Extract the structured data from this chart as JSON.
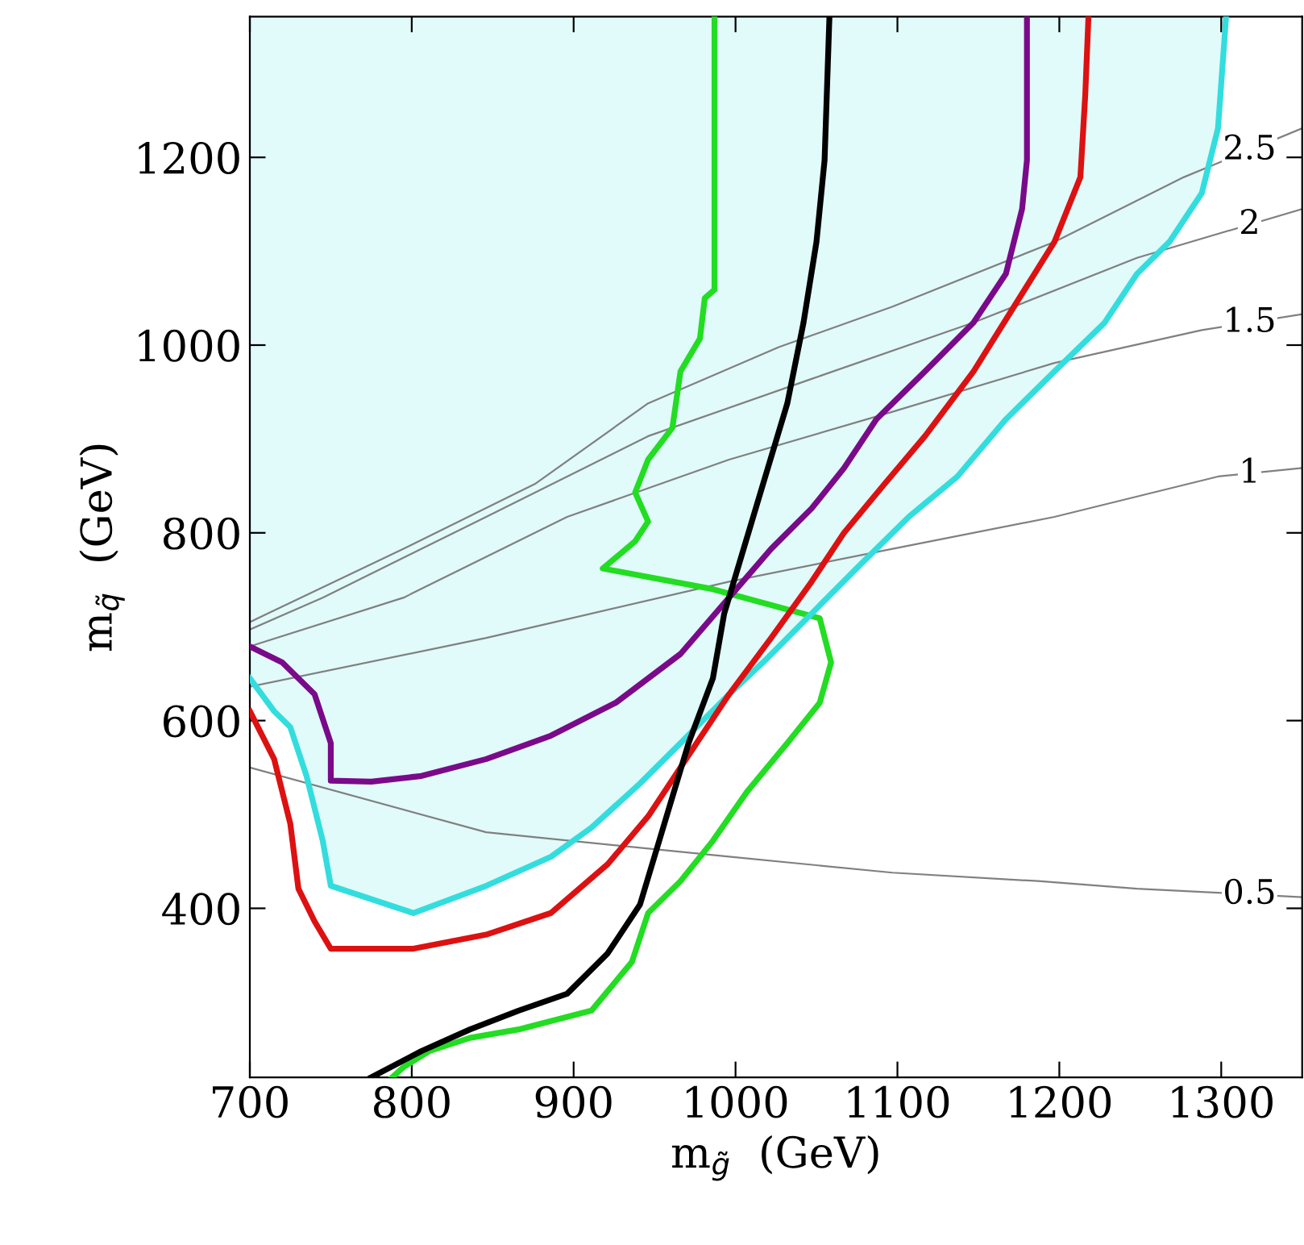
{
  "chart_data": {
    "type": "line",
    "xlabel": "m$_{g̃}$  (GeV)",
    "ylabel": "m$_{q̃}$  (GeV)",
    "xlim": [
      700,
      1350
    ],
    "ylim": [
      220,
      1350
    ],
    "xticks": [
      700,
      800,
      900,
      1000,
      1100,
      1200,
      1300
    ],
    "yticks": [
      400,
      600,
      800,
      1000,
      1200
    ],
    "grid": false,
    "legend": false,
    "series": [
      {
        "name": "0.5",
        "color": "#808080",
        "x": [
          700,
          846,
          996,
          1097,
          1187,
          1248,
          1350
        ],
        "values": [
          550,
          481,
          455,
          438,
          429,
          421,
          412
        ]
      },
      {
        "name": "1",
        "color": "#808080",
        "x": [
          700,
          846,
          996,
          1097,
          1197,
          1298,
          1350
        ],
        "values": [
          636,
          688,
          748,
          783,
          817,
          860,
          869
        ]
      },
      {
        "name": "1.5",
        "color": "#808080",
        "x": [
          700,
          795,
          896,
          996,
          1097,
          1197,
          1288,
          1350
        ],
        "values": [
          679,
          731,
          817,
          878,
          929,
          981,
          1016,
          1033
        ]
      },
      {
        "name": "2",
        "color": "#808080",
        "x": [
          700,
          745,
          846,
          946,
          1047,
          1147,
          1248,
          1350
        ],
        "values": [
          697,
          731,
          817,
          903,
          964,
          1024,
          1093,
          1145
        ]
      },
      {
        "name": "2.5",
        "color": "#808080",
        "x": [
          700,
          795,
          876,
          946,
          1027,
          1097,
          1197,
          1277,
          1350
        ],
        "values": [
          705,
          783,
          852,
          938,
          998,
          1041,
          1110,
          1179,
          1231
        ]
      },
      {
        "color": "#22dd22",
        "x": [
          987,
          987,
          981,
          978,
          966,
          961,
          946,
          938,
          946,
          938,
          918,
          986,
          1052,
          1059,
          1052,
          1032,
          1007,
          986,
          966,
          946,
          936,
          911,
          866,
          836,
          811,
          795,
          788
        ],
        "values": [
          1350,
          1059,
          1050,
          1007,
          972,
          912,
          878,
          843,
          812,
          791,
          762,
          740,
          709,
          662,
          619,
          576,
          524,
          472,
          429,
          395,
          343,
          291,
          271,
          262,
          248,
          231,
          220
        ]
      },
      {
        "color": "#33dddd",
        "x": [
          700,
          715,
          725,
          735,
          745,
          750,
          801,
          846,
          886,
          911,
          941,
          966,
          996,
          1017,
          1047,
          1077,
          1107,
          1137,
          1167,
          1197,
          1228,
          1248,
          1268,
          1288,
          1298,
          1303
        ],
        "values": [
          645,
          610,
          593,
          541,
          472,
          424,
          395,
          424,
          455,
          486,
          533,
          576,
          628,
          662,
          714,
          766,
          817,
          860,
          921,
          972,
          1024,
          1076,
          1110,
          1162,
          1231,
          1350
        ],
        "lower": [
          645,
          610,
          593,
          541,
          472,
          424,
          395,
          424,
          455,
          486,
          533,
          576,
          628,
          662,
          714,
          766,
          817,
          860,
          921,
          972,
          1024,
          1076,
          1110,
          1162,
          1231,
          1350
        ],
        "upper": [
          1350,
          1350,
          1350,
          1350,
          1350,
          1350,
          1350,
          1350,
          1350,
          1350,
          1350,
          1350,
          1350,
          1350,
          1350,
          1350,
          1350,
          1350,
          1350,
          1350,
          1350,
          1350,
          1350,
          1350,
          1350,
          1350
        ]
      },
      {
        "color": "#dd1111",
        "x": [
          700,
          715,
          725,
          730,
          740,
          750,
          801,
          846,
          886,
          921,
          946,
          976,
          996,
          1022,
          1047,
          1067,
          1092,
          1117,
          1147,
          1172,
          1197,
          1213,
          1216,
          1218
        ],
        "values": [
          610,
          559,
          490,
          421,
          386,
          357,
          357,
          372,
          395,
          447,
          498,
          576,
          628,
          688,
          748,
          800,
          852,
          903,
          972,
          1041,
          1110,
          1179,
          1266,
          1350
        ]
      },
      {
        "color": "#7a0a8a",
        "x": [
          700,
          720,
          740,
          750,
          750,
          775,
          806,
          846,
          886,
          926,
          966,
          996,
          1022,
          1047,
          1067,
          1087,
          1117,
          1147,
          1167,
          1177,
          1180,
          1180
        ],
        "values": [
          679,
          662,
          628,
          576,
          536,
          535,
          541,
          559,
          584,
          619,
          671,
          731,
          783,
          826,
          869,
          921,
          972,
          1024,
          1076,
          1145,
          1197,
          1350
        ]
      },
      {
        "color": "#000000",
        "x": [
          1058,
          1055,
          1050,
          1042,
          1032,
          1017,
          1005,
          993,
          986,
          971,
          956,
          941,
          921,
          896,
          866,
          836,
          806,
          775
        ],
        "values": [
          1350,
          1197,
          1110,
          1024,
          938,
          852,
          783,
          714,
          645,
          576,
          490,
          404,
          352,
          309,
          291,
          271,
          248,
          220
        ]
      }
    ]
  }
}
